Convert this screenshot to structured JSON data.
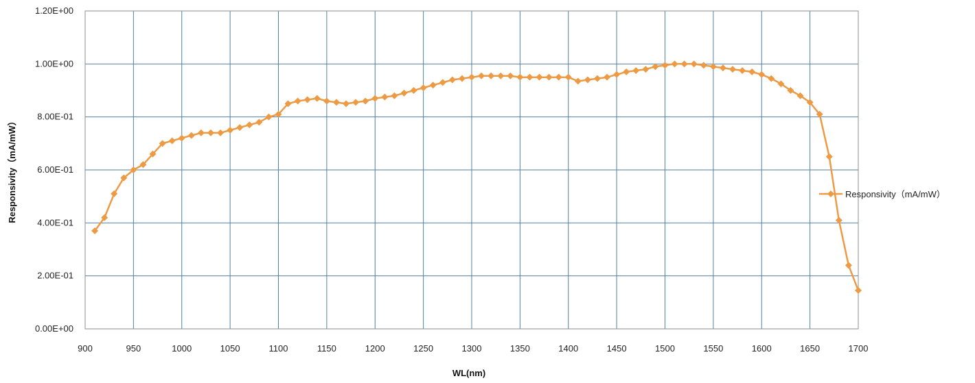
{
  "chart_data": {
    "type": "line",
    "xlabel": "WL(nm)",
    "ylabel": "Responsivity（mA/mW）",
    "xlim": [
      900,
      1700
    ],
    "ylim": [
      0,
      1.2
    ],
    "x_ticks": [
      "900",
      "950",
      "1000",
      "1050",
      "1100",
      "1150",
      "1200",
      "1250",
      "1300",
      "1350",
      "1400",
      "1450",
      "1500",
      "1550",
      "1600",
      "1650",
      "1700"
    ],
    "y_ticks": [
      "0.00E+00",
      "2.00E-01",
      "4.00E-01",
      "6.00E-01",
      "8.00E-01",
      "1.00E+00",
      "1.20E+00"
    ],
    "grid": true,
    "legend_position": "right",
    "series": [
      {
        "name": "Responsivity（mA/mW）",
        "color": "#ED9A45",
        "marker": "diamond",
        "x": [
          910,
          920,
          930,
          940,
          950,
          960,
          970,
          980,
          990,
          1000,
          1010,
          1020,
          1030,
          1040,
          1050,
          1060,
          1070,
          1080,
          1090,
          1100,
          1110,
          1120,
          1130,
          1140,
          1150,
          1160,
          1170,
          1180,
          1190,
          1200,
          1210,
          1220,
          1230,
          1240,
          1250,
          1260,
          1270,
          1280,
          1290,
          1300,
          1310,
          1320,
          1330,
          1340,
          1350,
          1360,
          1370,
          1380,
          1390,
          1400,
          1410,
          1420,
          1430,
          1440,
          1450,
          1460,
          1470,
          1480,
          1490,
          1500,
          1510,
          1520,
          1530,
          1540,
          1550,
          1560,
          1570,
          1580,
          1590,
          1600,
          1610,
          1620,
          1630,
          1640,
          1650,
          1660,
          1670,
          1680,
          1690,
          1700
        ],
        "y": [
          0.37,
          0.42,
          0.51,
          0.57,
          0.6,
          0.62,
          0.66,
          0.7,
          0.71,
          0.72,
          0.73,
          0.74,
          0.74,
          0.74,
          0.75,
          0.76,
          0.77,
          0.78,
          0.8,
          0.81,
          0.85,
          0.86,
          0.865,
          0.87,
          0.86,
          0.855,
          0.85,
          0.855,
          0.86,
          0.87,
          0.875,
          0.88,
          0.89,
          0.9,
          0.91,
          0.92,
          0.93,
          0.94,
          0.945,
          0.95,
          0.955,
          0.955,
          0.955,
          0.955,
          0.95,
          0.95,
          0.95,
          0.95,
          0.95,
          0.95,
          0.935,
          0.94,
          0.945,
          0.95,
          0.96,
          0.97,
          0.975,
          0.98,
          0.99,
          0.995,
          1.0,
          1.0,
          1.0,
          0.995,
          0.99,
          0.985,
          0.98,
          0.975,
          0.97,
          0.96,
          0.945,
          0.925,
          0.9,
          0.88,
          0.855,
          0.81,
          0.65,
          0.41,
          0.24,
          0.145
        ]
      }
    ]
  }
}
